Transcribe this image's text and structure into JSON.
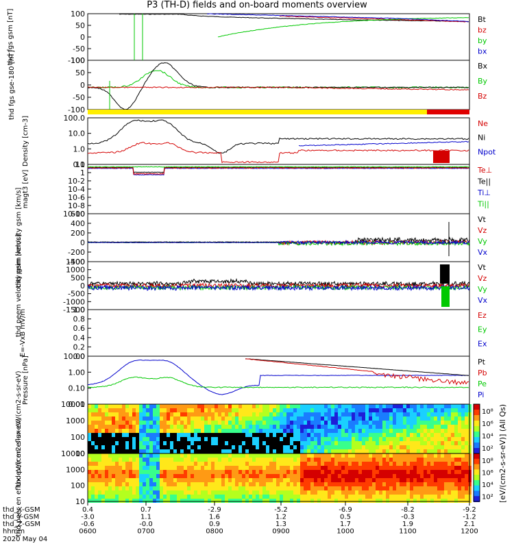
{
  "title": "P3 (TH-D) fields and on-board moments overview",
  "colors": {
    "black": "#000000",
    "red": "#d40000",
    "green": "#00c800",
    "blue": "#0000cc",
    "yellow": "#ffee00",
    "barred": "#e00000"
  },
  "time_axis": {
    "rows": [
      {
        "label": "thd_X-GSM",
        "values": [
          "0.4",
          "0.7",
          "-2.9",
          "-5.2",
          "-6.9",
          "-8.2",
          "-9.2"
        ]
      },
      {
        "label": "thd_Y-GSM",
        "values": [
          "-3.0",
          "1.1",
          "1.6",
          "1.2",
          "0.5",
          "-0.3",
          "-1.2"
        ]
      },
      {
        "label": "thd_Z-GSM",
        "values": [
          "-0.6",
          "-0.0",
          "0.9",
          "1.3",
          "1.7",
          "1.9",
          "2.1"
        ]
      },
      {
        "label": "hhmm",
        "values": [
          "0600",
          "0700",
          "0800",
          "0900",
          "1000",
          "1100",
          "1200"
        ]
      }
    ],
    "date": "2020 May 04"
  },
  "colorbar_label": "[eV/(cm2-s-sr-eV)] (All Qs)",
  "chart_data": [
    {
      "type": "line",
      "ylabel": "thd fgs gsm [nT]",
      "ylim": [
        -100,
        100
      ],
      "ticks": [
        "100",
        "50",
        "0",
        "-50",
        "-100"
      ],
      "series": [
        {
          "name": "Bt",
          "color": "black"
        },
        {
          "name": "bz",
          "color": "red"
        },
        {
          "name": "by",
          "color": "green"
        },
        {
          "name": "bx",
          "color": "blue"
        }
      ]
    },
    {
      "type": "line",
      "ylabel": "thd fgs gse-180 [nT]",
      "ylim": [
        -120,
        100
      ],
      "ticks": [
        "100",
        "50",
        "0",
        "-50",
        "-100"
      ],
      "series": [
        {
          "name": "Bx",
          "color": "black"
        },
        {
          "name": "By",
          "color": "green"
        },
        {
          "name": "Bz",
          "color": "red"
        }
      ]
    },
    {
      "type": "line",
      "ylabel": "Density [cm-3]",
      "scale": "log",
      "ylim": [
        0.1,
        100
      ],
      "ticks": [
        "100.0",
        "10.0",
        "1.0",
        "0.1"
      ],
      "series": [
        {
          "name": "Ne",
          "color": "red"
        },
        {
          "name": "Ni",
          "color": "black"
        },
        {
          "name": "Npot",
          "color": "blue"
        }
      ]
    },
    {
      "type": "line",
      "ylabel": "magt3 [eV]",
      "scale": "log",
      "ticks": [
        "10",
        "1",
        "10-2",
        "10-4",
        "10-6",
        "10-8",
        "10-10"
      ],
      "series": [
        {
          "name": "Te⊥",
          "color": "red"
        },
        {
          "name": "Te||",
          "color": "black"
        },
        {
          "name": "Ti⊥",
          "color": "blue"
        },
        {
          "name": "Ti||",
          "color": "green"
        }
      ]
    },
    {
      "type": "line",
      "ylabel": "thd peim velocity gsm [km/s]",
      "ylim": [
        -400,
        600
      ],
      "ticks": [
        "600",
        "400",
        "200",
        "0",
        "-200",
        "-400"
      ],
      "series": [
        {
          "name": "Vt",
          "color": "black"
        },
        {
          "name": "Vz",
          "color": "red"
        },
        {
          "name": "Vy",
          "color": "green"
        },
        {
          "name": "Vx",
          "color": "blue"
        }
      ]
    },
    {
      "type": "line",
      "ylabel": "thd peem velocity gsm [km/s]",
      "ylim": [
        -1500,
        1500
      ],
      "ticks": [
        "1500",
        "1000",
        "500",
        "0",
        "-500",
        "-1000",
        "-1500"
      ],
      "series": [
        {
          "name": "Vt",
          "color": "black"
        },
        {
          "name": "Vz",
          "color": "red"
        },
        {
          "name": "Vy",
          "color": "green"
        },
        {
          "name": "Vx",
          "color": "blue"
        }
      ]
    },
    {
      "type": "line",
      "ylabel": "E=-VxB mV/m",
      "ylim": [
        0,
        1
      ],
      "ticks": [
        "1.0",
        "0.8",
        "0.6",
        "0.4",
        "0.2",
        "0.0"
      ],
      "series": [
        {
          "name": "Ez",
          "color": "red"
        },
        {
          "name": "Ey",
          "color": "green"
        },
        {
          "name": "Ex",
          "color": "blue"
        }
      ]
    },
    {
      "type": "line",
      "ylabel": "Pressure [nPa]",
      "scale": "log",
      "ticks": [
        "10.00",
        "1.00",
        "0.10",
        "0.01"
      ],
      "series": [
        {
          "name": "Pt",
          "color": "black"
        },
        {
          "name": "Pb",
          "color": "red"
        },
        {
          "name": "Pe",
          "color": "green"
        },
        {
          "name": "Pi",
          "color": "blue"
        }
      ]
    },
    {
      "type": "heatmap",
      "ylabel": "thd peir en eflux eV/(cm2-s-sr-eV)",
      "ticks": [
        "10000",
        "1000",
        "100",
        "10"
      ],
      "colorbar": [
        "10⁸",
        "10⁶",
        "10⁴",
        "10²"
      ]
    },
    {
      "type": "heatmap",
      "ylabel": "thd peer en eflux eV/(cm2-s-sr-eV)",
      "ticks": [
        "10000",
        "1000",
        "100",
        "10"
      ],
      "colorbar": [
        "10⁸",
        "10⁶",
        "10⁴",
        "10²"
      ]
    }
  ]
}
